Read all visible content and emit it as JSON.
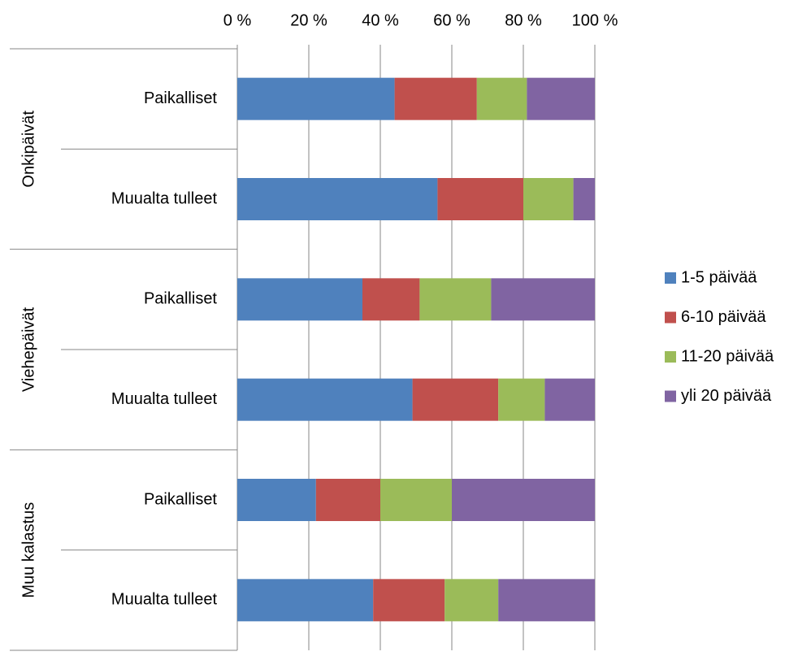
{
  "chart_data": {
    "type": "stacked_barh",
    "categories": [
      "Paikalliset",
      "Muualta tulleet",
      "Paikalliset",
      "Muualta tulleet",
      "Paikalliset",
      "Muualta tulleet"
    ],
    "group_labels": [
      "Onkipäivät",
      "Viehepäivät",
      "Muu kalastus"
    ],
    "series": [
      {
        "name": "1-5 päivää",
        "color": "#4f81bd",
        "values": [
          44,
          56,
          35,
          49,
          22,
          38
        ]
      },
      {
        "name": "6-10 päivää",
        "color": "#c0504d",
        "values": [
          23,
          24,
          16,
          24,
          18,
          20
        ]
      },
      {
        "name": "11-20 päivää",
        "color": "#9bbb59",
        "values": [
          14,
          14,
          20,
          13,
          20,
          15
        ]
      },
      {
        "name": "yli 20 päivää",
        "color": "#8064a2",
        "values": [
          19,
          6,
          29,
          14,
          40,
          27
        ]
      }
    ],
    "xlim": [
      0,
      100
    ],
    "xticks": [
      {
        "value": 0,
        "label": "0 %"
      },
      {
        "value": 20,
        "label": "20 %"
      },
      {
        "value": 40,
        "label": "40 %"
      },
      {
        "value": 60,
        "label": "60 %"
      },
      {
        "value": 80,
        "label": "80 %"
      },
      {
        "value": 100,
        "label": "100 %"
      }
    ],
    "grid": true,
    "legend": "right"
  }
}
